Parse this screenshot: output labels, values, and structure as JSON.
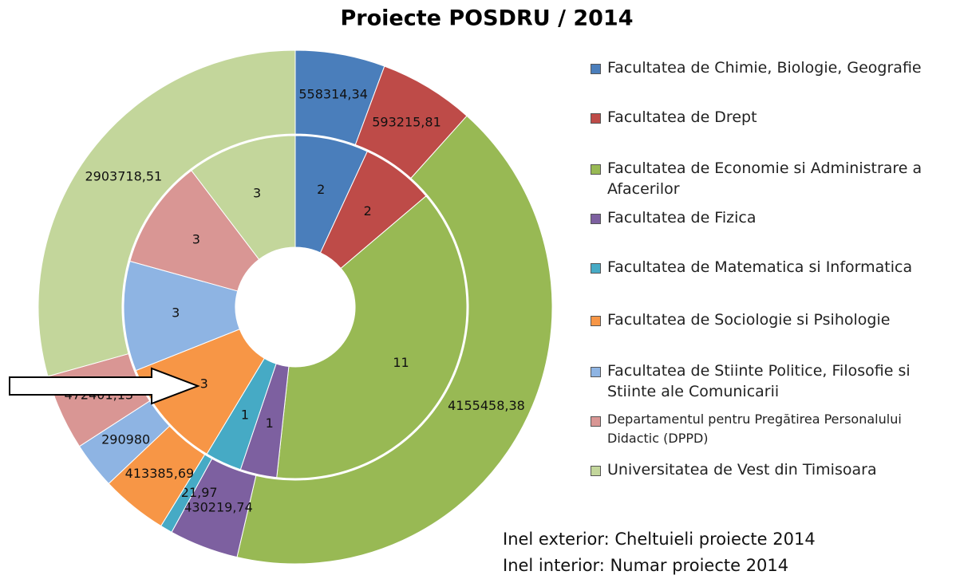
{
  "chart_data": {
    "type": "donut",
    "title": "Proiecte  POSDRU / 2014",
    "categories": [
      "Facultatea de Chimie, Biologie, Geografie",
      "Facultatea de Drept",
      "Facultatea de Economie si Administrare a Afacerilor",
      "Facultatea de Fizica",
      "Facultatea de Matematica si Informatica",
      "Facultatea de Sociologie si Psihologie",
      "Facultatea de Stiinte Politice, Filosofie si Stiinte ale Comunicarii",
      "Departamentul pentru Pregătirea Personalului Didactic (DPPD)",
      "Universitatea de Vest din Timisoara"
    ],
    "colors": [
      "#4a7ebb",
      "#be4b48",
      "#98b954",
      "#7d60a0",
      "#46aac5",
      "#f79646",
      "#8eb4e3",
      "#d99694",
      "#c3d69b"
    ],
    "outer": {
      "values": [
        558314.34,
        593215.81,
        4155458.38,
        430219.74,
        75821.97,
        413385.69,
        290980,
        472401.13,
        2903718.51
      ],
      "value_labels": [
        "558314,34",
        "593215,81",
        "4155458,38",
        "430219,74",
        "75821,97",
        "413385,69",
        "290980",
        "472401,13",
        "2903718,51"
      ]
    },
    "inner": {
      "values": [
        2,
        2,
        11,
        1,
        1,
        3,
        3,
        3,
        3
      ]
    },
    "annotations": [
      "Inel exterior: Cheltuieli proiecte 2014",
      "Inel interior: Numar proiecte 2014"
    ]
  }
}
